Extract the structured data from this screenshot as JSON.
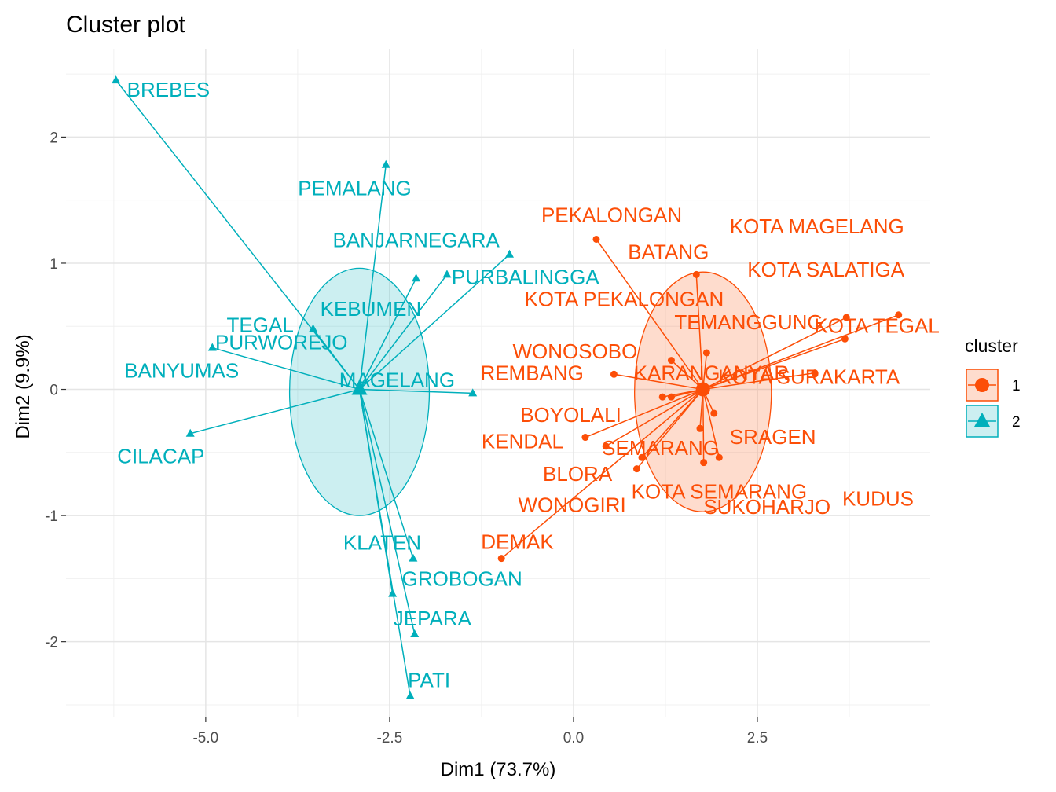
{
  "chart_data": {
    "type": "scatter",
    "title": "Cluster plot",
    "xlabel": "Dim1 (73.7%)",
    "ylabel": "Dim2 (9.9%)",
    "xlim": [
      -6.9,
      4.85
    ],
    "ylim": [
      -2.6,
      2.7
    ],
    "x_ticks": [
      -5,
      -2.5,
      0,
      2.5
    ],
    "x_tick_labels": [
      "-5.0",
      "-2.5",
      "0.0",
      "2.5"
    ],
    "y_ticks": [
      -2,
      -1,
      0,
      1,
      2
    ],
    "y_tick_labels": [
      "-2",
      "-1",
      "0",
      "1",
      "2"
    ],
    "legend": {
      "title": "cluster",
      "position": "right",
      "items": [
        {
          "label": "1",
          "color": "#FC4E07",
          "shape": "circle"
        },
        {
          "label": "2",
          "color": "#00AFBB",
          "shape": "triangle"
        }
      ]
    },
    "series": [
      {
        "name": "1",
        "color": "#FC4E07",
        "shape": "circle",
        "ellipse": {
          "cx": 1.76,
          "cy": -0.02,
          "rx": 0.93,
          "ry": 0.95
        },
        "centroid": [
          1.76,
          0.0
        ],
        "points": [
          {
            "label": "PEKALONGAN",
            "x": 0.31,
            "y": 1.19
          },
          {
            "label": "BATANG",
            "x": 1.67,
            "y": 0.91
          },
          {
            "label": "KOTA MAGELANG",
            "x": 4.42,
            "y": 0.59
          },
          {
            "label": "KOTA SALATIGA",
            "x": 3.71,
            "y": 0.57
          },
          {
            "label": "KOTA PEKALONGAN",
            "x": 1.33,
            "y": 0.23
          },
          {
            "label": "TEMANGGUNG",
            "x": 1.81,
            "y": 0.29
          },
          {
            "label": "WONOSOBO",
            "x": 1.33,
            "y": -0.06
          },
          {
            "label": "KOTA TEGAL",
            "x": 3.69,
            "y": 0.4
          },
          {
            "label": "REMBANG",
            "x": 0.55,
            "y": 0.12
          },
          {
            "label": "KARANGANYAR",
            "x": 1.76,
            "y": 0.0
          },
          {
            "label": "KOTA SURAKARTA",
            "x": 3.28,
            "y": 0.13
          },
          {
            "label": "BOYOLALI",
            "x": 1.21,
            "y": -0.06
          },
          {
            "label": "KENDAL",
            "x": 0.16,
            "y": -0.38
          },
          {
            "label": "SRAGEN",
            "x": 1.91,
            "y": -0.19
          },
          {
            "label": "SEMARANG",
            "x": 0.44,
            "y": -0.45
          },
          {
            "label": "KUDUS",
            "x": 1.72,
            "y": -0.31
          },
          {
            "label": "BLORA",
            "x": 0.93,
            "y": -0.54
          },
          {
            "label": "KOTA SEMARANG",
            "x": 1.77,
            "y": -0.58
          },
          {
            "label": "WONOGIRI",
            "x": 0.86,
            "y": -0.63
          },
          {
            "label": "SUKOHARJO",
            "x": 1.98,
            "y": -0.54
          },
          {
            "label": "DEMAK",
            "x": -0.98,
            "y": -1.34
          }
        ]
      },
      {
        "name": "2",
        "color": "#00AFBB",
        "shape": "triangle",
        "ellipse": {
          "cx": -2.91,
          "cy": -0.02,
          "rx": 0.95,
          "ry": 0.98
        },
        "centroid": [
          -2.91,
          0.0
        ],
        "points": [
          {
            "label": "BREBES",
            "x": -6.22,
            "y": 2.45
          },
          {
            "label": "PEMALANG",
            "x": -2.55,
            "y": 1.78
          },
          {
            "label": "BANJARNEGARA",
            "x": -0.87,
            "y": 1.07
          },
          {
            "label": "PURBALINGGA",
            "x": -1.72,
            "y": 0.91
          },
          {
            "label": "KEBUMEN",
            "x": -2.14,
            "y": 0.88
          },
          {
            "label": "TEGAL",
            "x": -3.54,
            "y": 0.48
          },
          {
            "label": "BANYUMAS",
            "x": -4.91,
            "y": 0.33
          },
          {
            "label": "MAGELANG",
            "x": -1.37,
            "y": -0.03
          },
          {
            "label": "PURWOREJO",
            "x": -2.91,
            "y": 0.0
          },
          {
            "label": "CILACAP",
            "x": -5.21,
            "y": -0.35
          },
          {
            "label": "KLATEN",
            "x": -2.18,
            "y": -1.34
          },
          {
            "label": "GROBOGAN",
            "x": -2.46,
            "y": -1.62
          },
          {
            "label": "JEPARA",
            "x": -2.16,
            "y": -1.94
          },
          {
            "label": "PATI",
            "x": -2.22,
            "y": -2.43
          }
        ]
      }
    ]
  }
}
